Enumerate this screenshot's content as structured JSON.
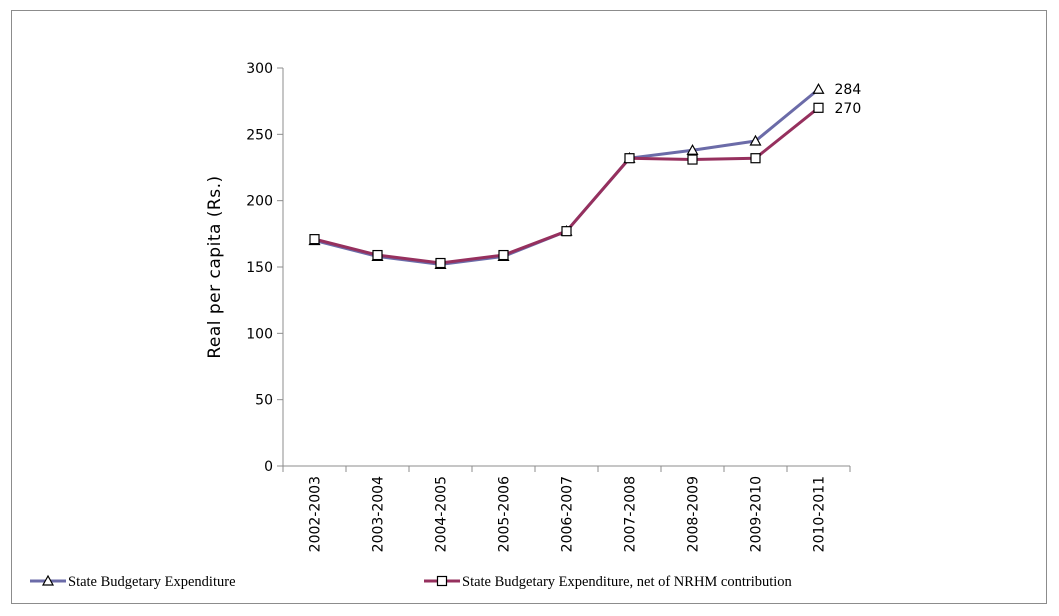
{
  "chart_data": {
    "type": "line",
    "categories": [
      "2002-2003",
      "2003-2004",
      "2004-2005",
      "2005-2006",
      "2006-2007",
      "2007-2008",
      "2008-2009",
      "2009-2010",
      "2010-2011"
    ],
    "series": [
      {
        "name": "State Budgetary Expenditure",
        "values": [
          170,
          158,
          152,
          158,
          177,
          232,
          238,
          245,
          284
        ],
        "color": "#6b6ba8",
        "marker": "triangle"
      },
      {
        "name": "State Budgetary Expenditure, net of NRHM contribution",
        "values": [
          171,
          159,
          153,
          159,
          177,
          232,
          231,
          232,
          270
        ],
        "color": "#96305e",
        "marker": "square"
      }
    ],
    "data_labels": [
      {
        "series": 0,
        "index": 8,
        "text": "284"
      },
      {
        "series": 1,
        "index": 8,
        "text": "270"
      }
    ],
    "title": "",
    "xlabel": "",
    "ylabel": "Real per capita (Rs.)",
    "ylim": [
      0,
      300
    ],
    "yticks": [
      0,
      50,
      100,
      150,
      200,
      250,
      300
    ],
    "grid": false,
    "legend_position": "bottom"
  }
}
